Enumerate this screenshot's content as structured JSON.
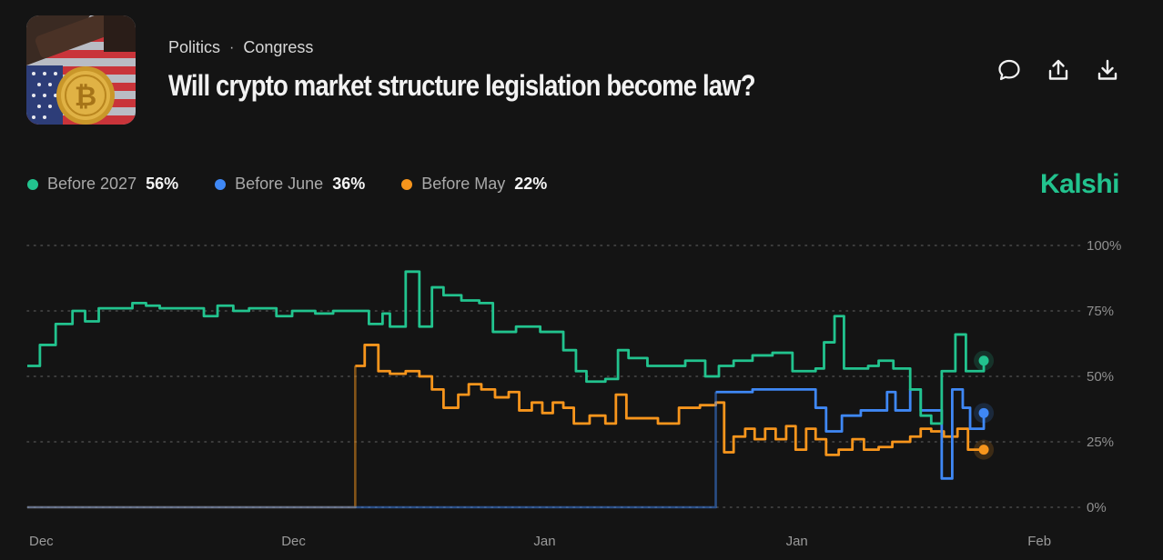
{
  "header": {
    "category": "Politics",
    "subcategory": "Congress",
    "title": "Will crypto market structure legislation become law?"
  },
  "actions": {
    "comment": "comment-icon",
    "share": "share-icon",
    "download": "download-icon"
  },
  "brand": "Kalshi",
  "colors": {
    "green": "#22c38e",
    "blue": "#3f88f5",
    "orange": "#f7951c"
  },
  "legend": [
    {
      "name": "Before 2027",
      "value": "56%",
      "color": "#22c38e"
    },
    {
      "name": "Before June",
      "value": "36%",
      "color": "#3f88f5"
    },
    {
      "name": "Before May",
      "value": "22%",
      "color": "#f7951c"
    }
  ],
  "chart_data": {
    "type": "line",
    "title": "Will crypto market structure legislation become law?",
    "x_labels": [
      "Dec",
      "Dec",
      "Jan",
      "Jan",
      "Feb"
    ],
    "x_label_positions": [
      0.0,
      0.24,
      0.48,
      0.72,
      0.95
    ],
    "y_ticks": [
      "100%",
      "75%",
      "50%",
      "25%",
      "0%"
    ],
    "ylim": [
      0,
      100
    ],
    "xlim": [
      0,
      1
    ],
    "series": [
      {
        "name": "Before 2027",
        "color": "#22c38e",
        "points": [
          [
            0.0,
            54
          ],
          [
            0.012,
            54
          ],
          [
            0.012,
            62
          ],
          [
            0.027,
            62
          ],
          [
            0.027,
            70
          ],
          [
            0.043,
            70
          ],
          [
            0.043,
            75
          ],
          [
            0.055,
            75
          ],
          [
            0.055,
            71
          ],
          [
            0.068,
            71
          ],
          [
            0.068,
            76
          ],
          [
            0.1,
            76
          ],
          [
            0.1,
            78
          ],
          [
            0.113,
            78
          ],
          [
            0.113,
            77
          ],
          [
            0.126,
            77
          ],
          [
            0.126,
            76
          ],
          [
            0.168,
            76
          ],
          [
            0.168,
            73
          ],
          [
            0.181,
            73
          ],
          [
            0.181,
            77
          ],
          [
            0.196,
            77
          ],
          [
            0.196,
            75
          ],
          [
            0.211,
            75
          ],
          [
            0.211,
            76
          ],
          [
            0.237,
            76
          ],
          [
            0.237,
            73
          ],
          [
            0.252,
            73
          ],
          [
            0.252,
            75
          ],
          [
            0.274,
            75
          ],
          [
            0.274,
            74
          ],
          [
            0.291,
            74
          ],
          [
            0.291,
            75
          ],
          [
            0.325,
            75
          ],
          [
            0.325,
            70
          ],
          [
            0.338,
            70
          ],
          [
            0.338,
            74
          ],
          [
            0.345,
            74
          ],
          [
            0.345,
            69
          ],
          [
            0.36,
            69
          ],
          [
            0.36,
            90
          ],
          [
            0.373,
            90
          ],
          [
            0.373,
            69
          ],
          [
            0.385,
            69
          ],
          [
            0.385,
            84
          ],
          [
            0.396,
            84
          ],
          [
            0.396,
            81
          ],
          [
            0.413,
            81
          ],
          [
            0.413,
            79
          ],
          [
            0.43,
            79
          ],
          [
            0.43,
            78
          ],
          [
            0.443,
            78
          ],
          [
            0.443,
            67
          ],
          [
            0.465,
            67
          ],
          [
            0.465,
            69
          ],
          [
            0.488,
            69
          ],
          [
            0.488,
            67
          ],
          [
            0.51,
            67
          ],
          [
            0.51,
            60
          ],
          [
            0.522,
            60
          ],
          [
            0.522,
            52
          ],
          [
            0.532,
            52
          ],
          [
            0.532,
            48
          ],
          [
            0.55,
            48
          ],
          [
            0.55,
            49
          ],
          [
            0.562,
            49
          ],
          [
            0.562,
            60
          ],
          [
            0.572,
            60
          ],
          [
            0.572,
            57
          ],
          [
            0.59,
            57
          ],
          [
            0.59,
            54
          ],
          [
            0.626,
            54
          ],
          [
            0.626,
            56
          ],
          [
            0.645,
            56
          ],
          [
            0.645,
            50
          ],
          [
            0.658,
            50
          ],
          [
            0.658,
            54
          ],
          [
            0.672,
            54
          ],
          [
            0.672,
            56
          ],
          [
            0.69,
            56
          ],
          [
            0.69,
            58
          ],
          [
            0.709,
            58
          ],
          [
            0.709,
            59
          ],
          [
            0.728,
            59
          ],
          [
            0.728,
            52
          ],
          [
            0.75,
            52
          ],
          [
            0.75,
            53
          ],
          [
            0.758,
            53
          ],
          [
            0.758,
            63
          ],
          [
            0.768,
            63
          ],
          [
            0.768,
            73
          ],
          [
            0.777,
            73
          ],
          [
            0.777,
            53
          ],
          [
            0.8,
            53
          ],
          [
            0.8,
            54
          ],
          [
            0.81,
            54
          ],
          [
            0.81,
            56
          ],
          [
            0.824,
            56
          ],
          [
            0.824,
            53
          ],
          [
            0.84,
            53
          ],
          [
            0.84,
            45
          ],
          [
            0.85,
            45
          ],
          [
            0.85,
            35
          ],
          [
            0.86,
            35
          ],
          [
            0.86,
            32
          ],
          [
            0.87,
            32
          ],
          [
            0.87,
            52
          ],
          [
            0.883,
            52
          ],
          [
            0.883,
            66
          ],
          [
            0.893,
            66
          ],
          [
            0.893,
            52
          ],
          [
            0.91,
            52
          ],
          [
            0.91,
            56
          ]
        ]
      },
      {
        "name": "Before June",
        "color": "#3f88f5",
        "points": [
          [
            0.0,
            0
          ],
          [
            0.655,
            0
          ],
          [
            0.655,
            44
          ],
          [
            0.69,
            44
          ],
          [
            0.69,
            45
          ],
          [
            0.75,
            45
          ],
          [
            0.75,
            38
          ],
          [
            0.76,
            38
          ],
          [
            0.76,
            29
          ],
          [
            0.775,
            29
          ],
          [
            0.775,
            35
          ],
          [
            0.793,
            35
          ],
          [
            0.793,
            37
          ],
          [
            0.818,
            37
          ],
          [
            0.818,
            44
          ],
          [
            0.826,
            44
          ],
          [
            0.826,
            37
          ],
          [
            0.84,
            37
          ],
          [
            0.84,
            45
          ],
          [
            0.85,
            45
          ],
          [
            0.85,
            37
          ],
          [
            0.87,
            37
          ],
          [
            0.87,
            11
          ],
          [
            0.88,
            11
          ],
          [
            0.88,
            45
          ],
          [
            0.89,
            45
          ],
          [
            0.89,
            38
          ],
          [
            0.897,
            38
          ],
          [
            0.897,
            30
          ],
          [
            0.91,
            30
          ],
          [
            0.91,
            36
          ]
        ]
      },
      {
        "name": "Before May",
        "color": "#f7951c",
        "points": [
          [
            0.0,
            0
          ],
          [
            0.312,
            0
          ],
          [
            0.312,
            54
          ],
          [
            0.321,
            54
          ],
          [
            0.321,
            62
          ],
          [
            0.334,
            62
          ],
          [
            0.334,
            52
          ],
          [
            0.345,
            52
          ],
          [
            0.345,
            51
          ],
          [
            0.36,
            51
          ],
          [
            0.36,
            52
          ],
          [
            0.373,
            52
          ],
          [
            0.373,
            50
          ],
          [
            0.385,
            50
          ],
          [
            0.385,
            45
          ],
          [
            0.396,
            45
          ],
          [
            0.396,
            38
          ],
          [
            0.41,
            38
          ],
          [
            0.41,
            43
          ],
          [
            0.42,
            43
          ],
          [
            0.42,
            47
          ],
          [
            0.432,
            47
          ],
          [
            0.432,
            45
          ],
          [
            0.445,
            45
          ],
          [
            0.445,
            42
          ],
          [
            0.458,
            42
          ],
          [
            0.458,
            44
          ],
          [
            0.468,
            44
          ],
          [
            0.468,
            37
          ],
          [
            0.48,
            37
          ],
          [
            0.48,
            40
          ],
          [
            0.49,
            40
          ],
          [
            0.49,
            36
          ],
          [
            0.5,
            36
          ],
          [
            0.5,
            40
          ],
          [
            0.51,
            40
          ],
          [
            0.51,
            38
          ],
          [
            0.52,
            38
          ],
          [
            0.52,
            32
          ],
          [
            0.535,
            32
          ],
          [
            0.535,
            35
          ],
          [
            0.55,
            35
          ],
          [
            0.55,
            32
          ],
          [
            0.56,
            32
          ],
          [
            0.56,
            43
          ],
          [
            0.57,
            43
          ],
          [
            0.57,
            34
          ],
          [
            0.6,
            34
          ],
          [
            0.6,
            32
          ],
          [
            0.62,
            32
          ],
          [
            0.62,
            38
          ],
          [
            0.64,
            38
          ],
          [
            0.64,
            39
          ],
          [
            0.655,
            39
          ],
          [
            0.655,
            40
          ],
          [
            0.663,
            40
          ],
          [
            0.663,
            21
          ],
          [
            0.672,
            21
          ],
          [
            0.672,
            27
          ],
          [
            0.683,
            27
          ],
          [
            0.683,
            30
          ],
          [
            0.692,
            30
          ],
          [
            0.692,
            26
          ],
          [
            0.702,
            26
          ],
          [
            0.702,
            30
          ],
          [
            0.712,
            30
          ],
          [
            0.712,
            26
          ],
          [
            0.722,
            26
          ],
          [
            0.722,
            31
          ],
          [
            0.731,
            31
          ],
          [
            0.731,
            22
          ],
          [
            0.741,
            22
          ],
          [
            0.741,
            30
          ],
          [
            0.75,
            30
          ],
          [
            0.75,
            26
          ],
          [
            0.76,
            26
          ],
          [
            0.76,
            20
          ],
          [
            0.772,
            20
          ],
          [
            0.772,
            22
          ],
          [
            0.785,
            22
          ],
          [
            0.785,
            26
          ],
          [
            0.796,
            26
          ],
          [
            0.796,
            22
          ],
          [
            0.81,
            22
          ],
          [
            0.81,
            23
          ],
          [
            0.823,
            23
          ],
          [
            0.823,
            25
          ],
          [
            0.84,
            25
          ],
          [
            0.84,
            27
          ],
          [
            0.85,
            27
          ],
          [
            0.85,
            30
          ],
          [
            0.86,
            30
          ],
          [
            0.86,
            29
          ],
          [
            0.872,
            29
          ],
          [
            0.872,
            27
          ],
          [
            0.885,
            27
          ],
          [
            0.885,
            30
          ],
          [
            0.895,
            30
          ],
          [
            0.895,
            22
          ],
          [
            0.91,
            22
          ]
        ]
      }
    ]
  }
}
